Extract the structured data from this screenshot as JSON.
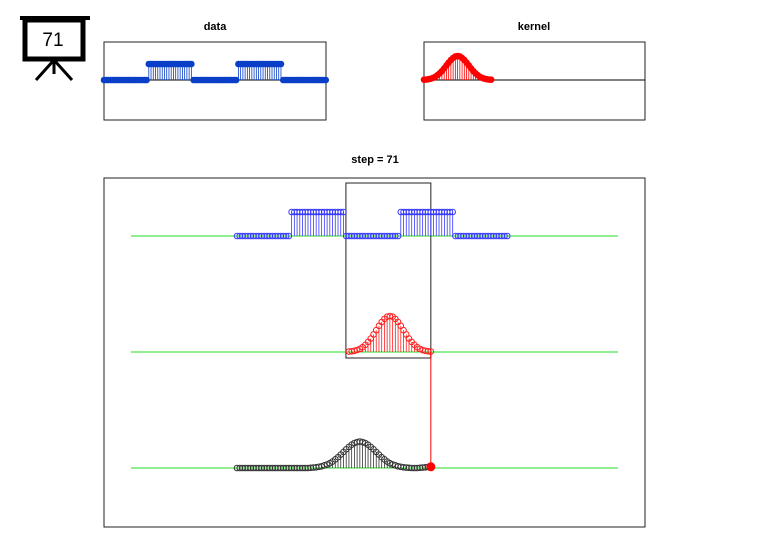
{
  "step": 71,
  "chart_data": [
    {
      "type": "stem",
      "title": "data",
      "color": "#0a3fc8",
      "values": [
        0,
        0,
        0,
        0,
        0,
        0,
        0,
        0,
        0,
        0,
        0,
        0,
        0,
        0,
        0,
        0,
        0,
        0,
        0,
        0,
        1,
        1,
        1,
        1,
        1,
        1,
        1,
        1,
        1,
        1,
        1,
        1,
        1,
        1,
        1,
        1,
        1,
        1,
        1,
        1,
        0,
        0,
        0,
        0,
        0,
        0,
        0,
        0,
        0,
        0,
        0,
        0,
        0,
        0,
        0,
        0,
        0,
        0,
        0,
        0,
        1,
        1,
        1,
        1,
        1,
        1,
        1,
        1,
        1,
        1,
        1,
        1,
        1,
        1,
        1,
        1,
        1,
        1,
        1,
        1,
        0,
        0,
        0,
        0,
        0,
        0,
        0,
        0,
        0,
        0,
        0,
        0,
        0,
        0,
        0,
        0,
        0,
        0,
        0,
        0
      ]
    },
    {
      "type": "stem",
      "title": "kernel",
      "color": "#ff0000",
      "values": [
        0.02,
        0.03,
        0.05,
        0.08,
        0.13,
        0.2,
        0.3,
        0.42,
        0.56,
        0.73,
        0.91,
        1.09,
        1.25,
        1.38,
        1.47,
        1.5,
        1.47,
        1.38,
        1.25,
        1.09,
        0.91,
        0.73,
        0.56,
        0.42,
        0.3,
        0.2,
        0.13,
        0.08,
        0.05,
        0.03,
        0.02
      ]
    },
    {
      "type": "convolution",
      "title": "step = 71",
      "data_color": "#3a3aff",
      "kernel_color": "#ff2020",
      "result_color": "#333333",
      "baseline_color": "#22dd22",
      "current_color": "#ff0000",
      "values": [
        0,
        0,
        0,
        0,
        0,
        0,
        0,
        0,
        0,
        0,
        0,
        0,
        0,
        0,
        0,
        0,
        0,
        0,
        0,
        0,
        0,
        0,
        0,
        0,
        0,
        0,
        0,
        0.01,
        0.02,
        0.03,
        0.05,
        0.07,
        0.11,
        0.15,
        0.2,
        0.27,
        0.36,
        0.45,
        0.56,
        0.67,
        0.78,
        0.88,
        0.97,
        1.04,
        1.08,
        1.1,
        1.08,
        1.04,
        0.97,
        0.88,
        0.78,
        0.67,
        0.56,
        0.45,
        0.36,
        0.27,
        0.2,
        0.15,
        0.11,
        0.07,
        0.05,
        0.03,
        0.02,
        0.01,
        0,
        0,
        0,
        0.01,
        0.02,
        0.03,
        0.04,
        0.05
      ]
    }
  ]
}
